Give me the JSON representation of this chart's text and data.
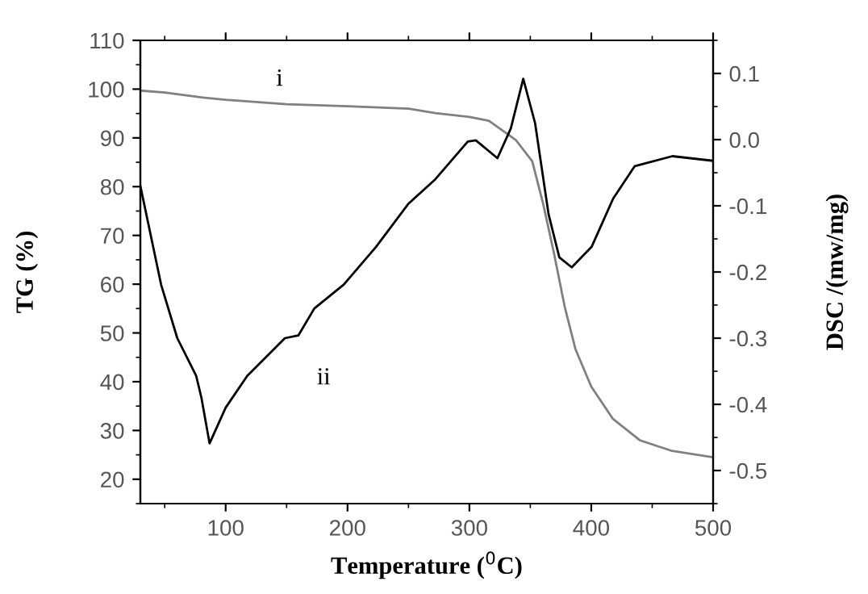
{
  "chart_data": {
    "type": "line",
    "xlabel": "Temperature ($^{0}$C)",
    "ylabel": "TG (%)",
    "y2label": "DSC /(mw/mg)",
    "xlim": [
      30,
      500
    ],
    "xticks": [
      100,
      200,
      300,
      400,
      500
    ],
    "ylim": [
      15,
      110
    ],
    "yticks": [
      20,
      30,
      40,
      50,
      60,
      70,
      80,
      90,
      100,
      110
    ],
    "y2lim": [
      -0.55,
      0.15
    ],
    "y2ticks": [
      -0.5,
      -0.4,
      -0.3,
      -0.2,
      -0.1,
      {
        "value": 0,
        "label": "0.0"
      },
      0.1
    ],
    "grid": false,
    "marker": "none",
    "line_style": "solid",
    "series": [
      {
        "color": "#808080",
        "x": [
          30,
          50,
          80,
          100,
          150,
          200,
          250,
          272,
          300,
          316,
          338,
          351.6,
          360.5,
          369.3,
          378.1,
          387,
          400,
          417.7,
          439.8,
          466.3,
          500
        ],
        "values": [
          99.7,
          99.3,
          98.3,
          97.8,
          96.9,
          96.5,
          96.0,
          95.1,
          94.3,
          93.5,
          89.6,
          85.2,
          76.5,
          66.5,
          55.5,
          46.7,
          39.0,
          32.4,
          28.0,
          25.8,
          24.5
        ]
      },
      {
        "color": "#000000",
        "axis": "y2",
        "x": [
          30,
          47,
          60.3,
          75.8,
          80.1,
          86.8,
          100,
          117.7,
          148.6,
          159.6,
          172.8,
          196.9,
          223.4,
          249.9,
          272,
          298.7,
          305.3,
          323,
          334,
          344.2,
          353.9,
          365,
          373.8,
          384,
          400.3,
          418,
          435.7,
          466.6,
          500
        ],
        "values": [
          -0.07,
          -0.219,
          -0.3,
          -0.357,
          -0.39,
          -0.459,
          -0.405,
          -0.357,
          -0.3,
          -0.296,
          -0.255,
          -0.219,
          -0.162,
          -0.097,
          -0.06,
          -0.003,
          -0.001,
          -0.028,
          0.017,
          0.092,
          0.025,
          -0.113,
          -0.178,
          -0.193,
          -0.162,
          -0.089,
          -0.04,
          -0.025,
          -0.032
        ]
      }
    ],
    "annotations": [
      "i",
      "ii"
    ]
  }
}
